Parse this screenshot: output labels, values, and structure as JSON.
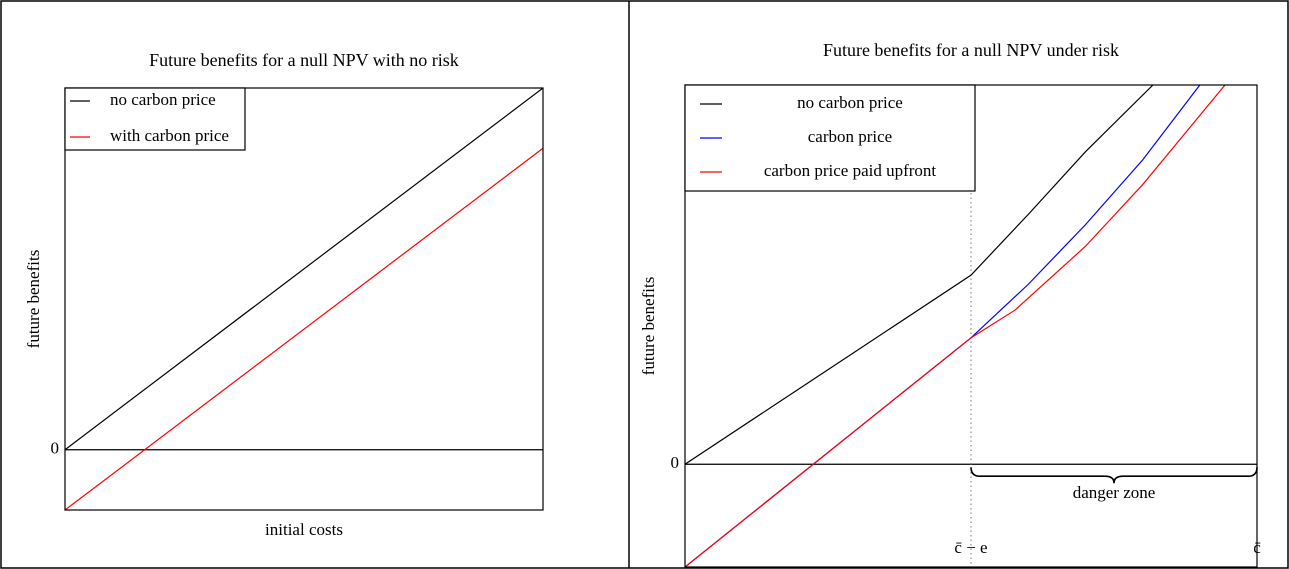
{
  "chart_data": [
    {
      "type": "line",
      "title": "Future benefits for a null NPV with no risk",
      "x_label": "initial costs",
      "y_label": "future benefits",
      "xlim": [
        0,
        1
      ],
      "ylim": [
        -1,
        6
      ],
      "yticks": [
        0
      ],
      "legend": "upper left",
      "series": [
        {
          "name": "no carbon price",
          "color": "#000000",
          "x": [
            0,
            1
          ],
          "values": [
            0,
            6
          ]
        },
        {
          "name": "with carbon price",
          "color": "#ff0000",
          "x": [
            0,
            1
          ],
          "values": [
            -1,
            5
          ]
        }
      ]
    },
    {
      "type": "line",
      "title": "Future benefits for a null NPV under risk",
      "y_label": "future benefits",
      "xlim": [
        0,
        1
      ],
      "ylim": [
        -1,
        3.69
      ],
      "xticks": [
        {
          "value": 0.5,
          "label": "c̄ − e"
        },
        {
          "value": 1,
          "label": "c̄"
        }
      ],
      "yticks": [
        0
      ],
      "legend": "upper left",
      "vline": 0.5,
      "annotations": [
        {
          "text": "danger zone",
          "x": [
            0.5,
            1
          ]
        }
      ],
      "series": [
        {
          "name": "no carbon price",
          "color": "#000000",
          "x": [
            0,
            0.5,
            0.6,
            0.7,
            0.818
          ],
          "values": [
            0,
            1.84,
            2.43,
            3.04,
            3.69
          ]
        },
        {
          "name": "carbon price",
          "color": "#0000ff",
          "x": [
            0,
            0.5,
            0.6,
            0.7,
            0.8,
            0.9
          ],
          "values": [
            -1,
            1.23,
            1.75,
            2.33,
            2.96,
            3.69
          ]
        },
        {
          "name": "carbon price paid upfront",
          "color": "#ff0000",
          "x": [
            0,
            0.5,
            0.577,
            0.7,
            0.8,
            0.944
          ],
          "values": [
            -1,
            1.23,
            1.5,
            2.12,
            2.72,
            3.69
          ]
        }
      ]
    }
  ]
}
